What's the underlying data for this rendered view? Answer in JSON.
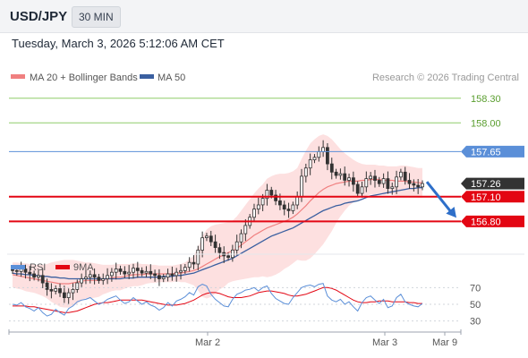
{
  "header": {
    "symbol": "USD/JPY",
    "timeframe": "30 MIN"
  },
  "timestamp": "Tuesday, March 3, 2026 5:12:06 AM CET",
  "legend": {
    "ma20": "MA 20 + Bollinger Bands",
    "ma50": "MA 50",
    "credit": "Research © 2026 Trading Central",
    "rsi": "RSI",
    "rsi_ma": "9MA"
  },
  "colors": {
    "bollinger_fill": "#fde0e0",
    "ma20": "#f08080",
    "ma50": "#3a5fa0",
    "candle": "#333333",
    "target_line": "#8fce6a",
    "target_text": "#5a9e2f",
    "resistance": "#5b8fd8",
    "support": "#e30613",
    "rsi": "#5b8fd8",
    "rsi_ma": "#e30613",
    "arrow": "#2e6fc9"
  },
  "chart_data": [
    {
      "type": "candlestick",
      "price_range": [
        156.4,
        158.45
      ],
      "x_ticks": [
        "Mar 2",
        "Mar 3",
        "Mar 9"
      ],
      "levels": [
        {
          "value": 158.3,
          "label": "158.30",
          "kind": "target"
        },
        {
          "value": 158.0,
          "label": "158.00",
          "kind": "target"
        },
        {
          "value": 157.65,
          "label": "157.65",
          "kind": "resistance"
        },
        {
          "value": 157.26,
          "label": "157.26",
          "kind": "last"
        },
        {
          "value": 157.1,
          "label": "157.10",
          "kind": "support"
        },
        {
          "value": 156.8,
          "label": "156.80",
          "kind": "support"
        }
      ],
      "close": [
        156.2,
        156.19,
        156.22,
        156.18,
        156.16,
        156.12,
        156.14,
        156.05,
        155.97,
        155.95,
        155.98,
        155.93,
        155.87,
        155.93,
        155.97,
        156.05,
        156.1,
        156.12,
        156.15,
        156.12,
        156.08,
        156.1,
        156.14,
        156.18,
        156.22,
        156.19,
        156.16,
        156.18,
        156.23,
        156.2,
        156.17,
        156.19,
        156.16,
        156.14,
        156.1,
        156.12,
        156.16,
        156.14,
        156.18,
        156.2,
        156.24,
        156.3,
        156.28,
        156.45,
        156.6,
        156.62,
        156.55,
        156.48,
        156.42,
        156.38,
        156.36,
        156.45,
        156.55,
        156.65,
        156.75,
        156.85,
        156.95,
        157.0,
        157.08,
        157.18,
        157.12,
        157.05,
        157.0,
        156.95,
        156.93,
        157.0,
        157.1,
        157.35,
        157.45,
        157.55,
        157.58,
        157.65,
        157.7,
        157.5,
        157.4,
        157.36,
        157.38,
        157.3,
        157.33,
        157.25,
        157.14,
        157.22,
        157.32,
        157.35,
        157.3,
        157.26,
        157.32,
        157.2,
        157.22,
        157.34,
        157.4,
        157.3,
        157.26,
        157.24,
        157.22,
        157.26
      ],
      "ma20": [
        156.15,
        156.14,
        156.13,
        156.12,
        156.11,
        156.1,
        156.09,
        156.08,
        156.07,
        156.06,
        156.05,
        156.04,
        156.04,
        156.04,
        156.05,
        156.06,
        156.07,
        156.08,
        156.08,
        156.08,
        156.08,
        156.09,
        156.1,
        156.11,
        156.12,
        156.12,
        156.13,
        156.14,
        156.15,
        156.15,
        156.15,
        156.16,
        156.16,
        156.16,
        156.16,
        156.16,
        156.16,
        156.16,
        156.17,
        156.17,
        156.18,
        156.19,
        156.2,
        156.22,
        156.25,
        156.28,
        156.31,
        156.34,
        156.37,
        156.39,
        156.42,
        156.44,
        156.47,
        156.51,
        156.55,
        156.59,
        156.63,
        156.66,
        156.69,
        156.72,
        156.74,
        156.76,
        156.78,
        156.8,
        156.82,
        156.85,
        156.89,
        156.94,
        156.99,
        157.05,
        157.1,
        157.15,
        157.19,
        157.22,
        157.24,
        157.26,
        157.27,
        157.28,
        157.29,
        157.29,
        157.29,
        157.3,
        157.3,
        157.31,
        157.31,
        157.31,
        157.3,
        157.3,
        157.3,
        157.29,
        157.29,
        157.29,
        157.28,
        157.28,
        157.27,
        157.27
      ],
      "ma50": [
        156.17,
        156.16,
        156.16,
        156.15,
        156.15,
        156.14,
        156.14,
        156.13,
        156.13,
        156.12,
        156.12,
        156.11,
        156.11,
        156.1,
        156.1,
        156.1,
        156.1,
        156.1,
        156.1,
        156.1,
        156.1,
        156.1,
        156.1,
        156.1,
        156.1,
        156.1,
        156.11,
        156.11,
        156.11,
        156.12,
        156.12,
        156.12,
        156.12,
        156.12,
        156.12,
        156.13,
        156.13,
        156.13,
        156.14,
        156.14,
        156.15,
        156.16,
        156.17,
        156.19,
        156.21,
        156.23,
        156.25,
        156.27,
        156.29,
        156.31,
        156.33,
        156.35,
        156.38,
        156.41,
        156.44,
        156.47,
        156.5,
        156.53,
        156.56,
        156.59,
        156.62,
        156.64,
        156.66,
        156.68,
        156.7,
        156.72,
        156.75,
        156.78,
        156.81,
        156.84,
        156.87,
        156.9,
        156.93,
        156.95,
        156.97,
        156.99,
        157.0,
        157.02,
        157.03,
        157.04,
        157.05,
        157.07,
        157.09,
        157.11,
        157.12,
        157.13,
        157.14,
        157.15,
        157.16,
        157.17,
        157.18,
        157.19,
        157.2,
        157.2,
        157.21,
        157.21
      ],
      "bb_upper": [
        156.3,
        156.3,
        156.29,
        156.29,
        156.28,
        156.27,
        156.27,
        156.27,
        156.28,
        156.3,
        156.31,
        156.32,
        156.33,
        156.33,
        156.33,
        156.32,
        156.31,
        156.3,
        156.3,
        156.29,
        156.28,
        156.27,
        156.27,
        156.27,
        156.28,
        156.28,
        156.28,
        156.28,
        156.29,
        156.29,
        156.28,
        156.28,
        156.27,
        156.27,
        156.26,
        156.26,
        156.26,
        156.26,
        156.27,
        156.28,
        156.3,
        156.34,
        156.38,
        156.48,
        156.62,
        156.7,
        156.74,
        156.76,
        156.77,
        156.78,
        156.79,
        156.81,
        156.86,
        156.93,
        157.0,
        157.07,
        157.14,
        157.2,
        157.25,
        157.32,
        157.35,
        157.37,
        157.38,
        157.38,
        157.39,
        157.41,
        157.45,
        157.56,
        157.66,
        157.75,
        157.8,
        157.84,
        157.86,
        157.84,
        157.8,
        157.74,
        157.68,
        157.63,
        157.59,
        157.55,
        157.52,
        157.5,
        157.49,
        157.49,
        157.49,
        157.48,
        157.48,
        157.47,
        157.47,
        157.47,
        157.48,
        157.48,
        157.47,
        157.46,
        157.45,
        157.45
      ],
      "bb_lower": [
        156.0,
        155.98,
        155.97,
        155.95,
        155.94,
        155.93,
        155.91,
        155.89,
        155.86,
        155.82,
        155.79,
        155.76,
        155.75,
        155.75,
        155.77,
        155.8,
        155.83,
        155.86,
        155.86,
        155.87,
        155.88,
        155.91,
        155.93,
        155.95,
        155.96,
        155.96,
        155.98,
        156.0,
        156.01,
        156.01,
        156.02,
        156.04,
        156.05,
        156.05,
        156.06,
        156.06,
        156.06,
        156.06,
        156.07,
        156.06,
        156.06,
        156.04,
        156.02,
        155.96,
        155.88,
        155.86,
        155.88,
        155.92,
        155.97,
        156.0,
        156.05,
        156.07,
        156.08,
        156.09,
        156.1,
        156.11,
        156.12,
        156.12,
        156.13,
        156.12,
        156.13,
        156.15,
        156.18,
        156.22,
        156.25,
        156.29,
        156.33,
        156.32,
        156.32,
        156.35,
        156.4,
        156.46,
        156.52,
        156.6,
        156.68,
        156.78,
        156.86,
        156.93,
        156.99,
        157.03,
        157.06,
        157.1,
        157.11,
        157.13,
        157.13,
        157.14,
        157.12,
        157.13,
        157.13,
        157.11,
        157.1,
        157.1,
        157.09,
        157.1,
        157.09,
        157.09
      ]
    },
    {
      "type": "line",
      "name": "RSI",
      "y_range": [
        20,
        80
      ],
      "y_ticks": [
        30,
        50,
        70
      ],
      "rsi": [
        50,
        49,
        52,
        47,
        45,
        42,
        46,
        40,
        36,
        38,
        44,
        40,
        37,
        45,
        48,
        53,
        55,
        56,
        58,
        54,
        50,
        52,
        56,
        58,
        60,
        55,
        51,
        53,
        58,
        54,
        50,
        53,
        49,
        47,
        43,
        46,
        52,
        48,
        54,
        56,
        59,
        64,
        61,
        71,
        74,
        72,
        62,
        56,
        52,
        48,
        47,
        56,
        62,
        64,
        67,
        68,
        70,
        66,
        70,
        72,
        63,
        57,
        54,
        51,
        50,
        58,
        64,
        70,
        72,
        73,
        71,
        74,
        75,
        60,
        55,
        53,
        56,
        50,
        53,
        47,
        42,
        52,
        58,
        60,
        55,
        51,
        56,
        46,
        48,
        58,
        62,
        53,
        50,
        48,
        47,
        51
      ],
      "ma9": [
        48,
        48,
        48,
        48,
        47,
        47,
        46,
        45,
        44,
        43,
        42,
        41,
        40,
        40,
        41,
        42,
        44,
        46,
        48,
        50,
        51,
        52,
        52,
        53,
        54,
        55,
        55,
        55,
        55,
        55,
        55,
        54,
        53,
        52,
        51,
        50,
        49,
        49,
        49,
        50,
        51,
        53,
        55,
        58,
        61,
        63,
        64,
        64,
        63,
        61,
        59,
        58,
        58,
        58,
        59,
        60,
        62,
        64,
        65,
        66,
        66,
        65,
        64,
        63,
        61,
        60,
        60,
        61,
        62,
        64,
        66,
        68,
        70,
        70,
        69,
        67,
        64,
        61,
        58,
        55,
        53,
        52,
        52,
        53,
        53,
        54,
        54,
        54,
        53,
        53,
        53,
        53,
        52,
        52,
        51,
        51
      ]
    }
  ]
}
